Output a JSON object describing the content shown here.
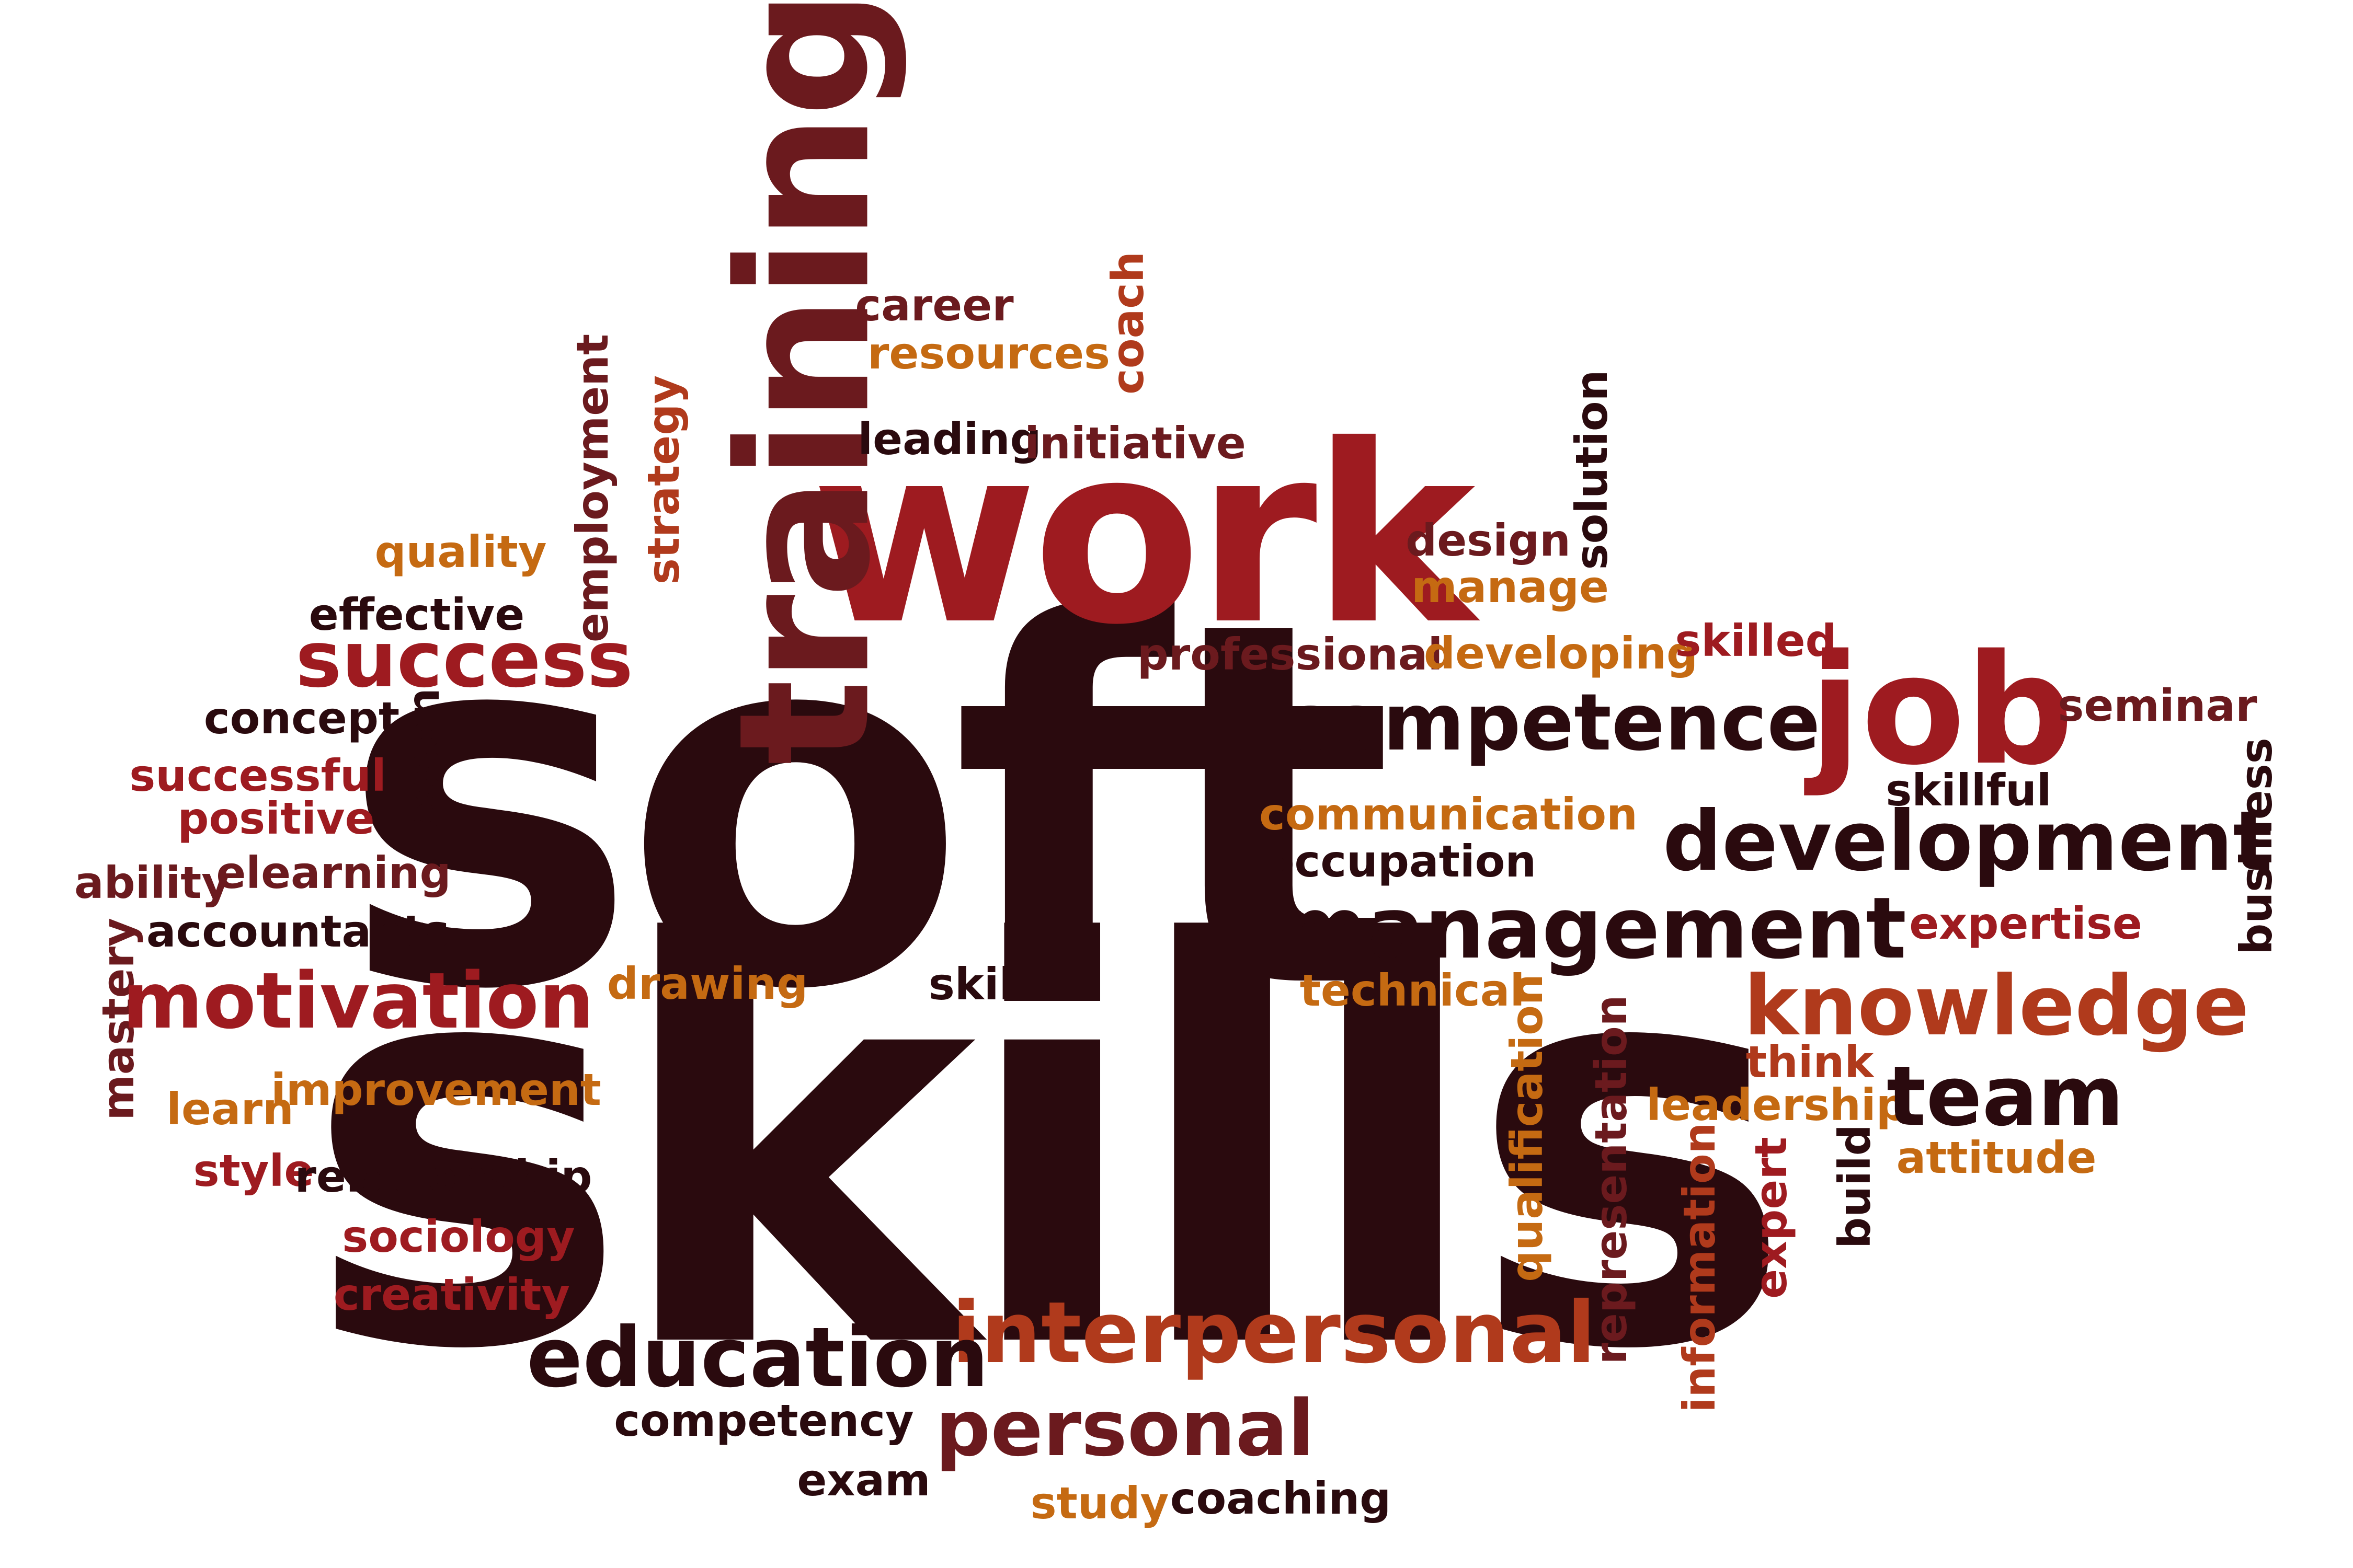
{
  "palette": {
    "dark": "#2a0a0e",
    "maroon": "#6b1a1e",
    "red": "#9e1b20",
    "rust": "#b03a1c",
    "orange": "#c56a12"
  },
  "words": {
    "soft": "soft",
    "skills": "skills",
    "work": "work",
    "training": "training",
    "career": "career",
    "resources": "resources",
    "coach": "coach",
    "leading": "leading",
    "initiative": "initiative",
    "employment": "employment",
    "strategy": "strategy",
    "solution": "solution",
    "quality": "quality",
    "effective": "effective",
    "design": "design",
    "manage": "manage",
    "success": "success",
    "professional": "professional",
    "developing": "developing",
    "skilled": "skilled",
    "concept": "concept",
    "lesson": "lesson",
    "competence": "competence",
    "job": "job",
    "seminar": "seminar",
    "successful": "successful",
    "positive": "positive",
    "skillful": "skillful",
    "communication": "communication",
    "development": "development",
    "business": "business",
    "ability": "ability",
    "elearning": "elearning",
    "occupation": "occupation",
    "accountants": "accountants",
    "management": "management",
    "expertise": "expertise",
    "mastery": "mastery",
    "motivation": "motivation",
    "drawing": "drawing",
    "skill": "skill",
    "technical": "technical",
    "knowledge": "knowledge",
    "qualification": "qualification",
    "representation": "representation",
    "think": "think",
    "learn": "learn",
    "improvement": "improvement",
    "leadership": "leadership",
    "team": "team",
    "style": "style",
    "relationship": "relationship",
    "attitude": "attitude",
    "information": "information",
    "expert": "expert",
    "build": "build",
    "sociology": "sociology",
    "creativity": "creativity",
    "interpersonal": "interpersonal",
    "education": "education",
    "competency": "competency",
    "personal": "personal",
    "exam": "exam",
    "study": "study",
    "coaching": "coaching"
  }
}
